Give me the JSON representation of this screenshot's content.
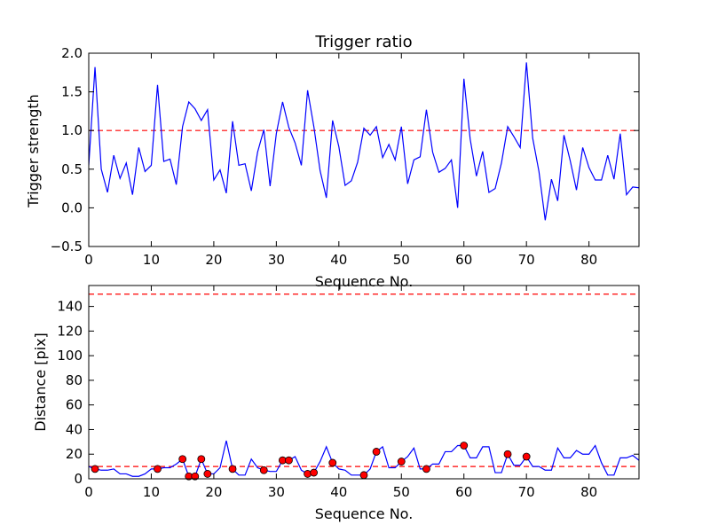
{
  "chart_data": [
    {
      "type": "line",
      "title": "Trigger ratio",
      "xlabel": "Sequence No.",
      "ylabel": "Trigger strength",
      "xlim": [
        0,
        88
      ],
      "ylim": [
        -0.5,
        2.0
      ],
      "xticks": [
        "0",
        "10",
        "20",
        "30",
        "40",
        "50",
        "60",
        "70",
        "80"
      ],
      "yticks": [
        "−0.5",
        "0.0",
        "0.5",
        "1.0",
        "1.5",
        "2.0"
      ],
      "grid": false,
      "line_color": "#0000ff",
      "threshold": 1.0,
      "threshold_color": "#ff0000",
      "x": [
        0,
        1,
        2,
        3,
        4,
        5,
        6,
        7,
        8,
        9,
        10,
        11,
        12,
        13,
        14,
        15,
        16,
        17,
        18,
        19,
        20,
        21,
        22,
        23,
        24,
        25,
        26,
        27,
        28,
        29,
        30,
        31,
        32,
        33,
        34,
        35,
        36,
        37,
        38,
        39,
        40,
        41,
        42,
        43,
        44,
        45,
        46,
        47,
        48,
        49,
        50,
        51,
        52,
        53,
        54,
        55,
        56,
        57,
        58,
        59,
        60,
        61,
        62,
        63,
        64,
        65,
        66,
        67,
        68,
        69,
        70,
        71,
        72,
        73,
        74,
        75,
        76,
        77,
        78,
        79,
        80,
        81,
        82,
        83,
        84,
        85,
        86,
        87,
        88
      ],
      "values": [
        0.55,
        1.82,
        0.5,
        0.2,
        0.68,
        0.38,
        0.58,
        0.17,
        0.78,
        0.47,
        0.55,
        1.59,
        0.6,
        0.63,
        0.3,
        1.05,
        1.37,
        1.28,
        1.13,
        1.27,
        0.36,
        0.49,
        0.19,
        1.12,
        0.55,
        0.57,
        0.22,
        0.72,
        1.01,
        0.28,
        0.96,
        1.37,
        1.04,
        0.84,
        0.55,
        1.52,
        1.05,
        0.48,
        0.13,
        1.13,
        0.79,
        0.29,
        0.35,
        0.59,
        1.03,
        0.94,
        1.05,
        0.65,
        0.82,
        0.62,
        1.05,
        0.31,
        0.62,
        0.66,
        1.27,
        0.72,
        0.46,
        0.51,
        0.62,
        0.0,
        1.67,
        0.89,
        0.41,
        0.73,
        0.2,
        0.25,
        0.58,
        1.05,
        0.92,
        0.78,
        1.88,
        0.9,
        0.47,
        -0.16,
        0.37,
        0.09,
        0.94,
        0.61,
        0.23,
        0.78,
        0.52,
        0.36,
        0.36,
        0.68,
        0.37,
        0.96,
        0.17,
        0.27,
        0.26
      ]
    },
    {
      "type": "line",
      "xlabel": "Sequence No.",
      "ylabel": "Distance [pix]",
      "xlim": [
        0,
        88
      ],
      "ylim": [
        0,
        157
      ],
      "xticks": [
        "0",
        "10",
        "20",
        "30",
        "40",
        "50",
        "60",
        "70",
        "80"
      ],
      "yticks": [
        "0",
        "20",
        "40",
        "60",
        "80",
        "100",
        "120",
        "140"
      ],
      "grid": false,
      "line_color": "#0000ff",
      "thresholds": [
        10,
        150
      ],
      "threshold_color": "#ff0000",
      "marker_color": "#ff0000",
      "x": [
        0,
        1,
        2,
        3,
        4,
        5,
        6,
        7,
        8,
        9,
        10,
        11,
        12,
        13,
        14,
        15,
        16,
        17,
        18,
        19,
        20,
        21,
        22,
        23,
        24,
        25,
        26,
        27,
        28,
        29,
        30,
        31,
        32,
        33,
        34,
        35,
        36,
        37,
        38,
        39,
        40,
        41,
        42,
        43,
        44,
        45,
        46,
        47,
        48,
        49,
        50,
        51,
        52,
        53,
        54,
        55,
        56,
        57,
        58,
        59,
        60,
        61,
        62,
        63,
        64,
        65,
        66,
        67,
        68,
        69,
        70,
        71,
        72,
        73,
        74,
        75,
        76,
        77,
        78,
        79,
        80,
        81,
        82,
        83,
        84,
        85,
        86,
        87,
        88
      ],
      "values": [
        10,
        8,
        7,
        7,
        8,
        4,
        4,
        2,
        2,
        4,
        8,
        8,
        9,
        9,
        12,
        16,
        2,
        2,
        16,
        4,
        4,
        9,
        31,
        8,
        3,
        3,
        16,
        9,
        7,
        6,
        6,
        15,
        15,
        18,
        7,
        4,
        5,
        14,
        26,
        13,
        8,
        7,
        3,
        3,
        3,
        8,
        22,
        26,
        9,
        9,
        14,
        18,
        25,
        8,
        8,
        12,
        12,
        22,
        22,
        27,
        27,
        17,
        17,
        26,
        26,
        5,
        5,
        20,
        11,
        11,
        18,
        10,
        10,
        7,
        7,
        25,
        17,
        17,
        23,
        20,
        20,
        27,
        13,
        3,
        3,
        17,
        17,
        19,
        15
      ],
      "markers": [
        {
          "x": 1,
          "y": 8
        },
        {
          "x": 11,
          "y": 8
        },
        {
          "x": 15,
          "y": 16
        },
        {
          "x": 16,
          "y": 2
        },
        {
          "x": 17,
          "y": 2
        },
        {
          "x": 18,
          "y": 16
        },
        {
          "x": 19,
          "y": 4
        },
        {
          "x": 23,
          "y": 8
        },
        {
          "x": 28,
          "y": 7
        },
        {
          "x": 31,
          "y": 15
        },
        {
          "x": 32,
          "y": 15
        },
        {
          "x": 35,
          "y": 4
        },
        {
          "x": 36,
          "y": 5
        },
        {
          "x": 39,
          "y": 13
        },
        {
          "x": 44,
          "y": 3
        },
        {
          "x": 46,
          "y": 22
        },
        {
          "x": 50,
          "y": 14
        },
        {
          "x": 54,
          "y": 8
        },
        {
          "x": 60,
          "y": 27
        },
        {
          "x": 67,
          "y": 20
        },
        {
          "x": 70,
          "y": 18
        }
      ]
    }
  ]
}
